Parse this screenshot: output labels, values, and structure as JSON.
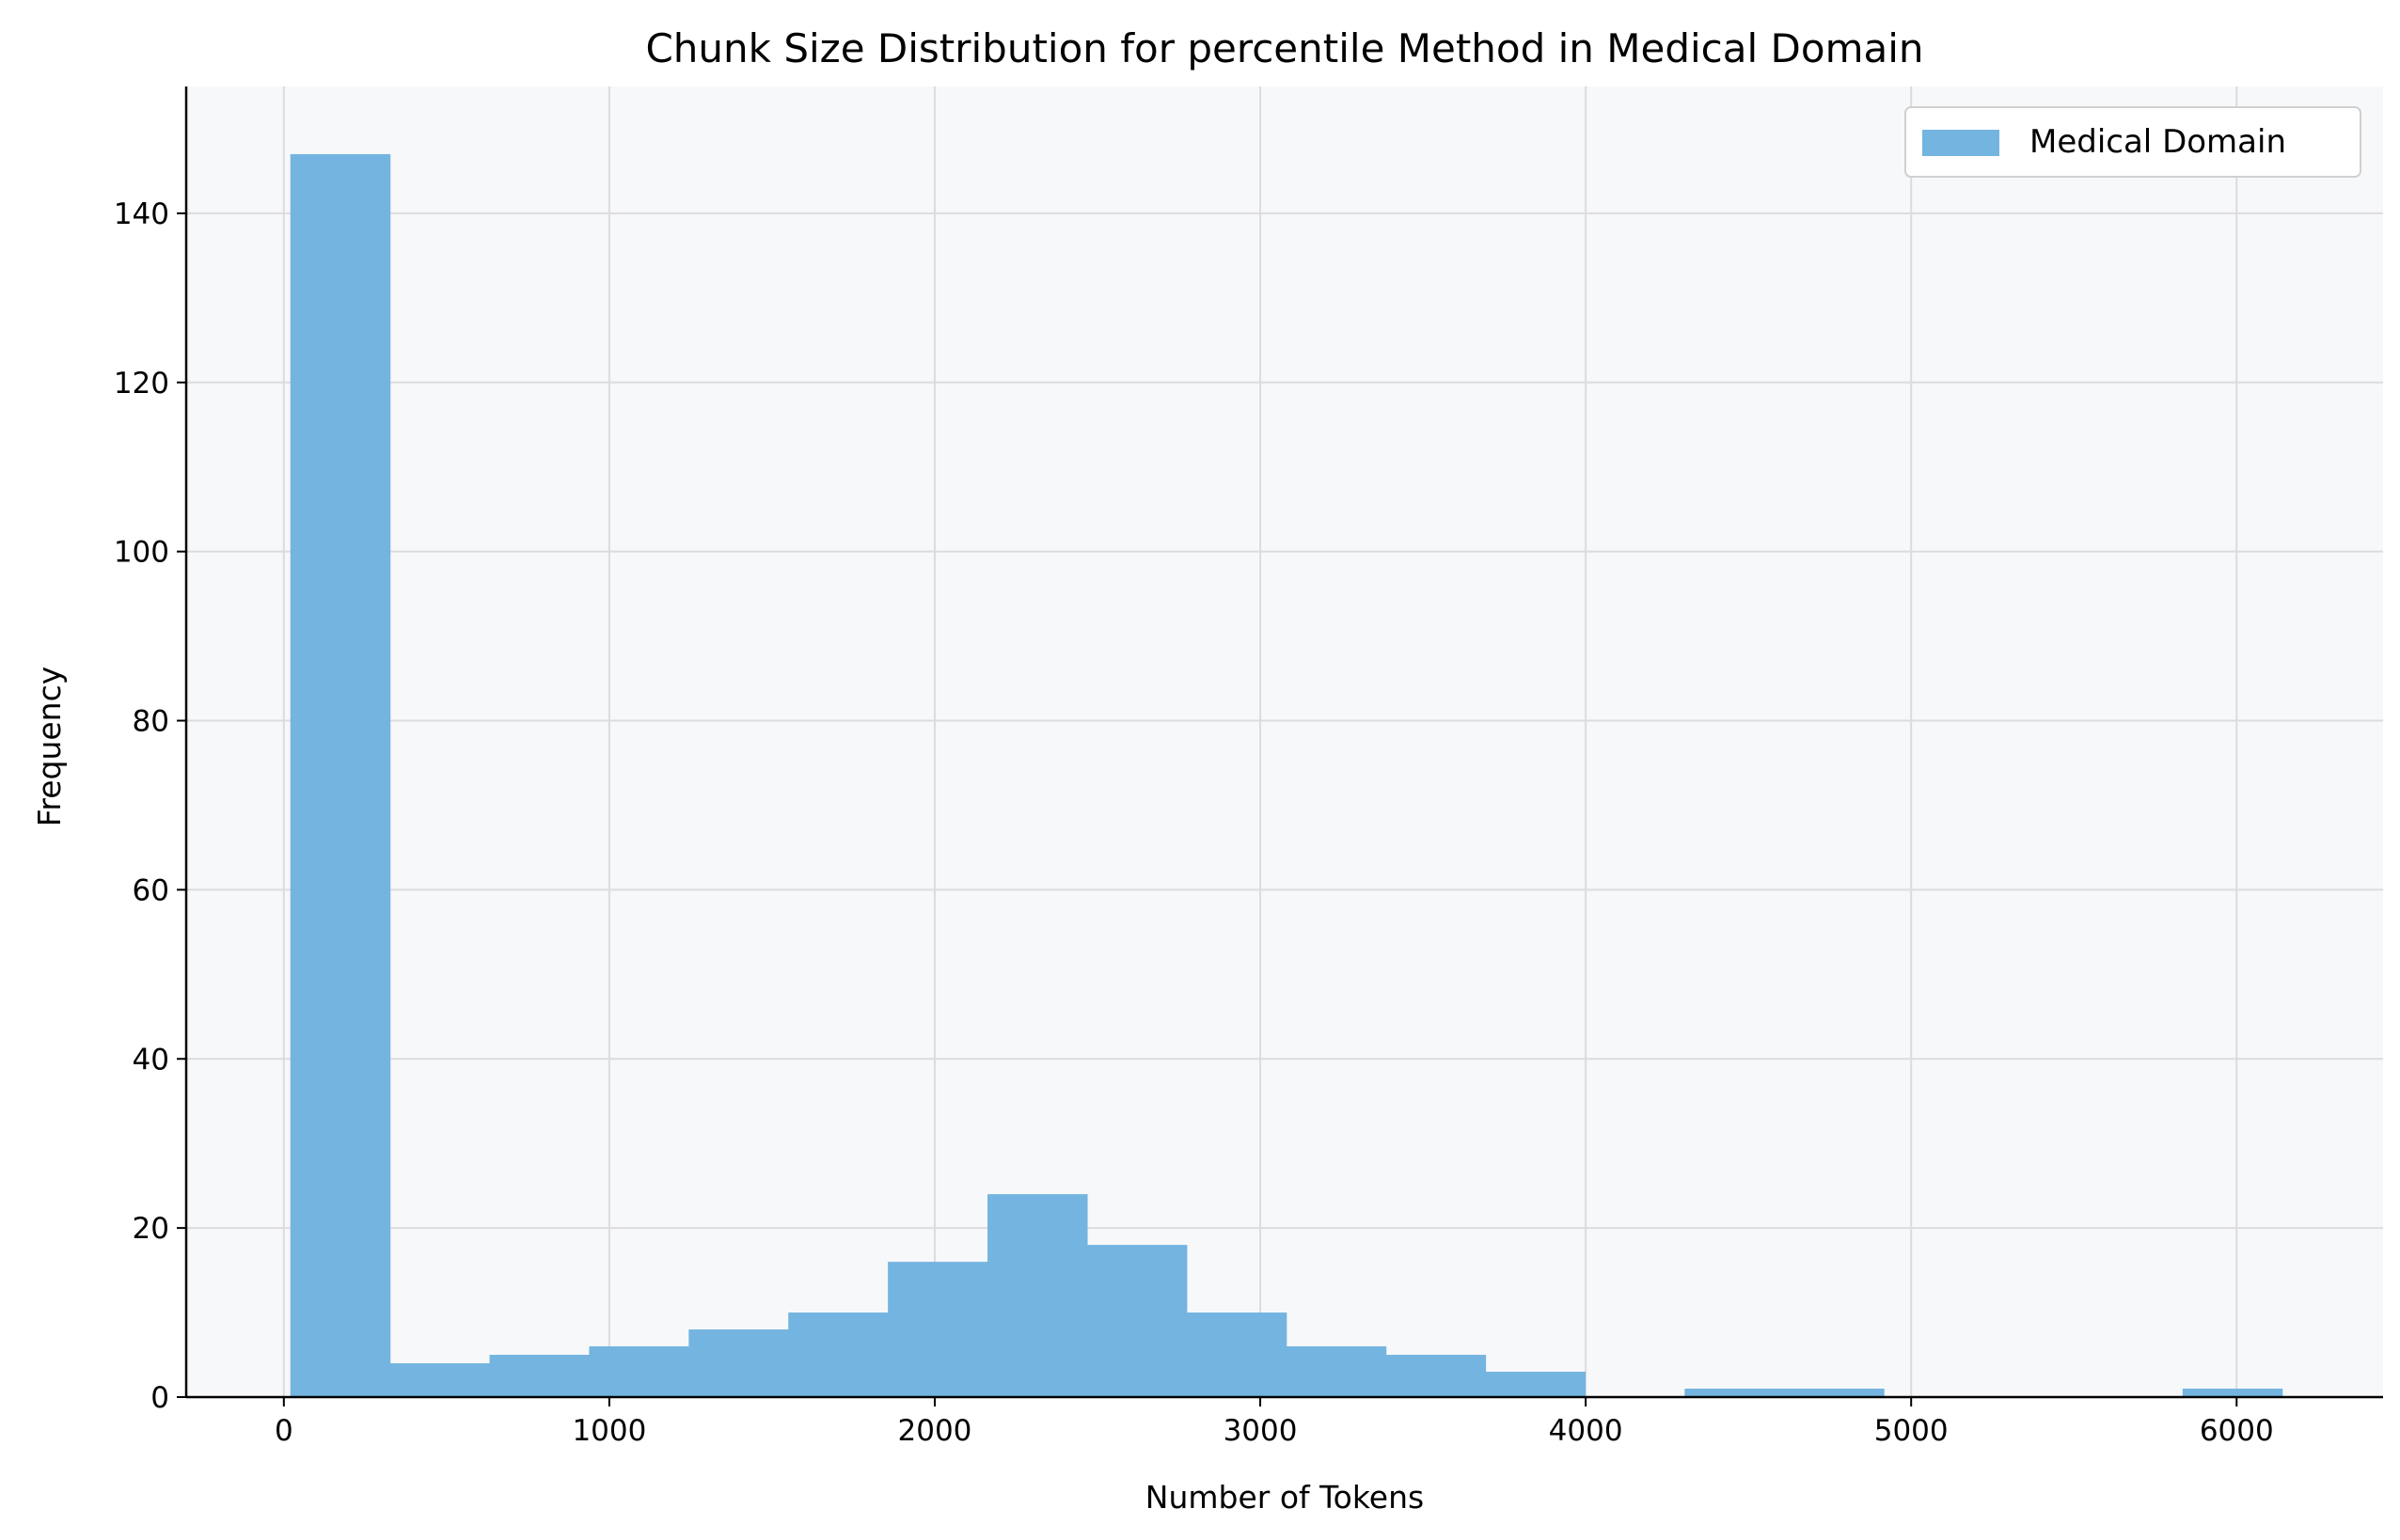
{
  "chart_data": {
    "type": "bar",
    "title": "Chunk Size Distribution for percentile Method in Medical Domain",
    "xlabel": "Number of Tokens",
    "ylabel": "Frequency",
    "xlim": [
      -300,
      6450
    ],
    "ylim": [
      0,
      155
    ],
    "xticks": [
      0,
      1000,
      2000,
      3000,
      4000,
      5000,
      6000
    ],
    "yticks": [
      0,
      20,
      40,
      60,
      80,
      100,
      120,
      140
    ],
    "grid": true,
    "legend_position": "top-right",
    "series": [
      {
        "name": "Medical Domain",
        "color": "#74b4e0",
        "bins": [
          {
            "x0": 20,
            "x1": 326,
            "count": 147
          },
          {
            "x0": 326,
            "x1": 632,
            "count": 4
          },
          {
            "x0": 632,
            "x1": 938,
            "count": 5
          },
          {
            "x0": 938,
            "x1": 1244,
            "count": 6
          },
          {
            "x0": 1244,
            "x1": 1550,
            "count": 8
          },
          {
            "x0": 1550,
            "x1": 1856,
            "count": 10
          },
          {
            "x0": 1856,
            "x1": 2162,
            "count": 16
          },
          {
            "x0": 2162,
            "x1": 2468,
            "count": 24
          },
          {
            "x0": 2468,
            "x1": 2774,
            "count": 18
          },
          {
            "x0": 2774,
            "x1": 3080,
            "count": 10
          },
          {
            "x0": 3080,
            "x1": 3386,
            "count": 6
          },
          {
            "x0": 3386,
            "x1": 3692,
            "count": 5
          },
          {
            "x0": 3692,
            "x1": 3998,
            "count": 3
          },
          {
            "x0": 3998,
            "x1": 4304,
            "count": 0
          },
          {
            "x0": 4304,
            "x1": 4610,
            "count": 1
          },
          {
            "x0": 4610,
            "x1": 4916,
            "count": 1
          },
          {
            "x0": 4916,
            "x1": 5222,
            "count": 0
          },
          {
            "x0": 5222,
            "x1": 5528,
            "count": 0
          },
          {
            "x0": 5528,
            "x1": 5834,
            "count": 0
          },
          {
            "x0": 5834,
            "x1": 6140,
            "count": 1
          }
        ]
      }
    ]
  },
  "colors": {
    "plot_background": "#f7f8fa",
    "grid": "#dcdcdc",
    "bar": "#74b4e0"
  }
}
